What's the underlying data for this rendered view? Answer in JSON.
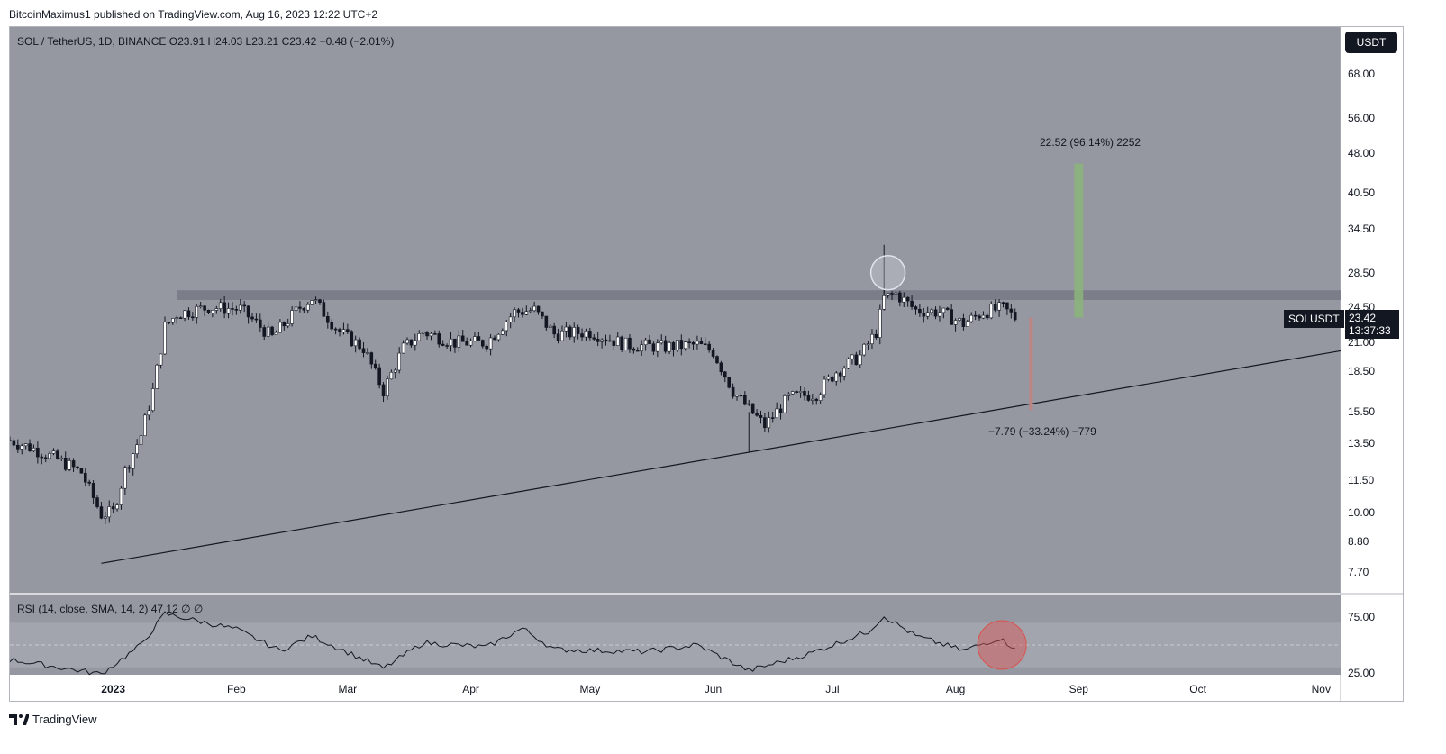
{
  "publisher_line": "BitcoinMaximus1 published on TradingView.com, Aug 16, 2023 12:22 UTC+2",
  "legend": {
    "symbol": "SOL / TetherUS, 1D, BINANCE",
    "o_label": "O",
    "o_value": "23.91",
    "h_label": "H",
    "h_value": "24.03",
    "l_label": "L",
    "l_value": "23.21",
    "c_label": "C",
    "c_value": "23.42",
    "change": "−0.48 (−2.01%)"
  },
  "currency_button": "USDT",
  "price_axis_labels": [
    "68.00",
    "56.00",
    "48.00",
    "40.50",
    "34.50",
    "28.50",
    "24.50",
    "21.00",
    "18.50",
    "15.50",
    "13.50",
    "11.50",
    "10.00",
    "8.80",
    "7.70"
  ],
  "symbol_tag": "SOLUSDT",
  "price_tag": {
    "price": "23.42",
    "countdown": "13:37:33"
  },
  "measure_up": "22.52 (96.14%) 2252",
  "measure_down": "−7.79 (−33.24%) −779",
  "rsi_legend": {
    "title": "RSI (14, close, SMA, 14, 2)",
    "value": "47.12",
    "extra1": "∅",
    "extra2": "∅"
  },
  "rsi_axis_labels": [
    "75.00",
    "25.00"
  ],
  "time_axis_labels": [
    {
      "text": "2023",
      "bold": true
    },
    {
      "text": "Feb",
      "bold": false
    },
    {
      "text": "Mar",
      "bold": false
    },
    {
      "text": "Apr",
      "bold": false
    },
    {
      "text": "May",
      "bold": false
    },
    {
      "text": "Jun",
      "bold": false
    },
    {
      "text": "Jul",
      "bold": false
    },
    {
      "text": "Aug",
      "bold": false
    },
    {
      "text": "Sep",
      "bold": false
    },
    {
      "text": "Oct",
      "bold": false
    },
    {
      "text": "Nov",
      "bold": false
    }
  ],
  "footer_brand": "TradingView",
  "colors": {
    "panel_bg": "#9598a1",
    "resistance_band": "#787b86",
    "measure_up": "#8bb47a",
    "measure_down": "#c08580",
    "highlight_circle_red": "#d9534f",
    "highlight_circle_white": "#d1d4dc",
    "candle": "#131722"
  },
  "chart_data": {
    "type": "candlestick",
    "symbol": "SOL / TetherUS",
    "interval": "1D",
    "exchange": "BINANCE",
    "y_scale": "log",
    "ylim": [
      7.2,
      78
    ],
    "x_range": [
      "2022-12-06",
      "2023-11-01"
    ],
    "close_series": [
      {
        "date": "2022-12-06",
        "close": 13.7
      },
      {
        "date": "2022-12-12",
        "close": 13.2
      },
      {
        "date": "2022-12-18",
        "close": 12.6
      },
      {
        "date": "2022-12-24",
        "close": 11.9
      },
      {
        "date": "2022-12-29",
        "close": 9.9
      },
      {
        "date": "2023-01-01",
        "close": 10.0
      },
      {
        "date": "2023-01-04",
        "close": 12.0
      },
      {
        "date": "2023-01-08",
        "close": 14.0
      },
      {
        "date": "2023-01-11",
        "close": 17.0
      },
      {
        "date": "2023-01-14",
        "close": 22.5
      },
      {
        "date": "2023-01-17",
        "close": 23.8
      },
      {
        "date": "2023-01-25",
        "close": 24.5
      },
      {
        "date": "2023-02-02",
        "close": 24.3
      },
      {
        "date": "2023-02-10",
        "close": 21.5
      },
      {
        "date": "2023-02-17",
        "close": 24.5
      },
      {
        "date": "2023-02-20",
        "close": 25.5
      },
      {
        "date": "2023-02-27",
        "close": 22.0
      },
      {
        "date": "2023-03-05",
        "close": 20.5
      },
      {
        "date": "2023-03-10",
        "close": 17.0
      },
      {
        "date": "2023-03-15",
        "close": 20.5
      },
      {
        "date": "2023-03-20",
        "close": 22.0
      },
      {
        "date": "2023-03-28",
        "close": 21.0
      },
      {
        "date": "2023-04-05",
        "close": 21.0
      },
      {
        "date": "2023-04-12",
        "close": 24.0
      },
      {
        "date": "2023-04-17",
        "close": 24.2
      },
      {
        "date": "2023-04-22",
        "close": 21.8
      },
      {
        "date": "2023-05-01",
        "close": 22.0
      },
      {
        "date": "2023-05-10",
        "close": 20.8
      },
      {
        "date": "2023-05-20",
        "close": 20.6
      },
      {
        "date": "2023-05-28",
        "close": 20.8
      },
      {
        "date": "2023-06-01",
        "close": 20.2
      },
      {
        "date": "2023-06-06",
        "close": 17.0
      },
      {
        "date": "2023-06-10",
        "close": 15.7
      },
      {
        "date": "2023-06-14",
        "close": 14.6
      },
      {
        "date": "2023-06-20",
        "close": 16.5
      },
      {
        "date": "2023-06-27",
        "close": 16.8
      },
      {
        "date": "2023-07-02",
        "close": 18.5
      },
      {
        "date": "2023-07-08",
        "close": 19.8
      },
      {
        "date": "2023-07-12",
        "close": 22.0
      },
      {
        "date": "2023-07-14",
        "close": 25.5
      },
      {
        "date": "2023-07-17",
        "close": 26.0
      },
      {
        "date": "2023-07-22",
        "close": 24.2
      },
      {
        "date": "2023-07-28",
        "close": 24.0
      },
      {
        "date": "2023-08-03",
        "close": 22.8
      },
      {
        "date": "2023-08-08",
        "close": 24.0
      },
      {
        "date": "2023-08-13",
        "close": 24.4
      },
      {
        "date": "2023-08-16",
        "close": 23.42
      }
    ],
    "rsi_series": [
      {
        "date": "2022-12-06",
        "rsi": 37
      },
      {
        "date": "2022-12-29",
        "rsi": 24
      },
      {
        "date": "2023-01-08",
        "rsi": 50
      },
      {
        "date": "2023-01-14",
        "rsi": 78
      },
      {
        "date": "2023-02-01",
        "rsi": 64
      },
      {
        "date": "2023-02-12",
        "rsi": 45
      },
      {
        "date": "2023-02-20",
        "rsi": 58
      },
      {
        "date": "2023-03-10",
        "rsi": 29
      },
      {
        "date": "2023-03-20",
        "rsi": 52
      },
      {
        "date": "2023-04-05",
        "rsi": 48
      },
      {
        "date": "2023-04-14",
        "rsi": 65
      },
      {
        "date": "2023-04-22",
        "rsi": 46
      },
      {
        "date": "2023-05-15",
        "rsi": 44
      },
      {
        "date": "2023-05-28",
        "rsi": 50
      },
      {
        "date": "2023-06-10",
        "rsi": 27
      },
      {
        "date": "2023-06-25",
        "rsi": 42
      },
      {
        "date": "2023-07-10",
        "rsi": 62
      },
      {
        "date": "2023-07-14",
        "rsi": 76
      },
      {
        "date": "2023-07-22",
        "rsi": 58
      },
      {
        "date": "2023-08-03",
        "rsi": 45
      },
      {
        "date": "2023-08-12",
        "rsi": 56
      },
      {
        "date": "2023-08-16",
        "rsi": 47.12
      }
    ],
    "rsi_levels": [
      70,
      50,
      30
    ],
    "annotations": [
      {
        "type": "resistance_zone",
        "low": 25.3,
        "high": 26.4,
        "from": "2023-01-17",
        "to": "2023-11-01"
      },
      {
        "type": "ascending_support",
        "from": {
          "date": "2022-12-29",
          "price": 8.0
        },
        "through": {
          "date": "2023-06-10",
          "price": 13.0
        }
      },
      {
        "type": "measure_up",
        "label": "22.52 (96.14%) 2252",
        "from_price": 23.42,
        "to_price": 45.94,
        "date": "2023-09-01"
      },
      {
        "type": "measure_down",
        "label": "−7.79 (−33.24%) −779",
        "from_price": 23.42,
        "to_price": 15.63,
        "date": "2023-08-20"
      },
      {
        "type": "circle",
        "date": "2023-07-15",
        "price": 28.5
      },
      {
        "type": "circle",
        "pane": "rsi",
        "date": "2023-08-12",
        "rsi": 50
      }
    ]
  }
}
